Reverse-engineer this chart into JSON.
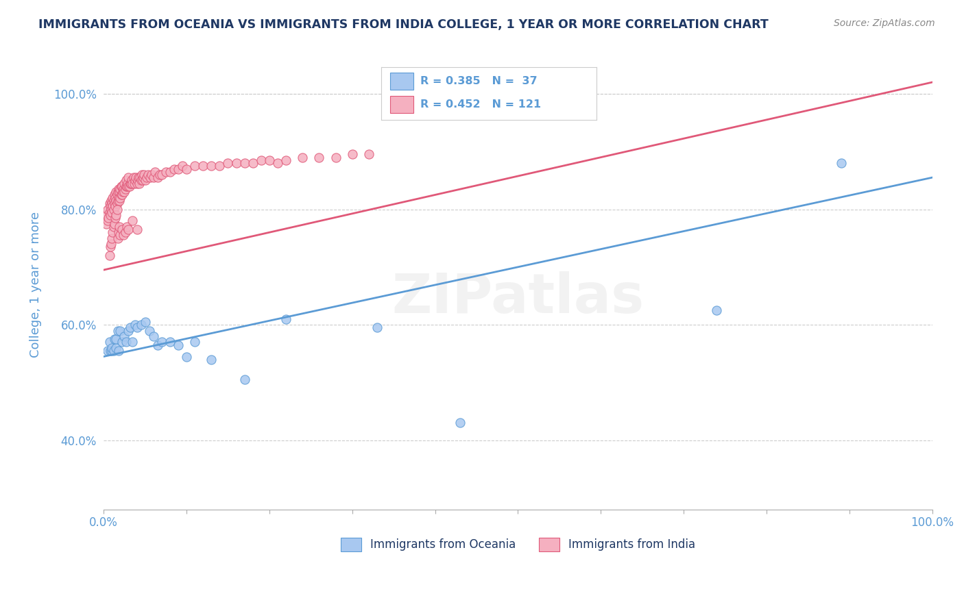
{
  "title": "IMMIGRANTS FROM OCEANIA VS IMMIGRANTS FROM INDIA COLLEGE, 1 YEAR OR MORE CORRELATION CHART",
  "source_text": "Source: ZipAtlas.com",
  "ylabel": "College, 1 year or more",
  "xlim": [
    0.0,
    1.0
  ],
  "ylim": [
    0.28,
    1.06
  ],
  "y_ticks": [
    0.4,
    0.6,
    0.8,
    1.0
  ],
  "y_tick_labels": [
    "40.0%",
    "60.0%",
    "80.0%",
    "100.0%"
  ],
  "x_ticks": [
    0.0,
    0.1,
    0.2,
    0.3,
    0.4,
    0.5,
    0.6,
    0.7,
    0.8,
    0.9,
    1.0
  ],
  "watermark": "ZIPatlas",
  "legend_r_oceania": "0.385",
  "legend_n_oceania": "37",
  "legend_r_india": "0.452",
  "legend_n_india": "121",
  "color_oceania_fill": "#A8C8F0",
  "color_oceania_edge": "#5B9BD5",
  "color_india_fill": "#F5B0C0",
  "color_india_edge": "#E05878",
  "color_line_oceania": "#5B9BD5",
  "color_line_india": "#E05878",
  "title_color": "#1F3864",
  "axis_label_color": "#5B9BD5",
  "legend_rn_color": "#5B9BD5",
  "grid_color": "#CCCCCC",
  "background_color": "#FFFFFF",
  "oceania_trend_start_y": 0.545,
  "oceania_trend_end_y": 0.855,
  "india_trend_start_y": 0.695,
  "india_trend_end_y": 1.02,
  "oceania_x": [
    0.005,
    0.007,
    0.008,
    0.01,
    0.01,
    0.012,
    0.013,
    0.015,
    0.015,
    0.017,
    0.018,
    0.02,
    0.022,
    0.025,
    0.027,
    0.03,
    0.032,
    0.035,
    0.038,
    0.04,
    0.045,
    0.05,
    0.055,
    0.06,
    0.065,
    0.07,
    0.08,
    0.09,
    0.1,
    0.11,
    0.13,
    0.17,
    0.22,
    0.33,
    0.43,
    0.74,
    0.89
  ],
  "oceania_y": [
    0.555,
    0.57,
    0.555,
    0.555,
    0.56,
    0.555,
    0.575,
    0.56,
    0.575,
    0.59,
    0.555,
    0.59,
    0.57,
    0.58,
    0.57,
    0.59,
    0.595,
    0.57,
    0.6,
    0.595,
    0.6,
    0.605,
    0.59,
    0.58,
    0.565,
    0.57,
    0.57,
    0.565,
    0.545,
    0.57,
    0.54,
    0.505,
    0.61,
    0.595,
    0.43,
    0.625,
    0.88
  ],
  "india_x": [
    0.003,
    0.004,
    0.005,
    0.005,
    0.006,
    0.007,
    0.007,
    0.008,
    0.008,
    0.009,
    0.009,
    0.01,
    0.01,
    0.011,
    0.011,
    0.012,
    0.012,
    0.013,
    0.013,
    0.014,
    0.014,
    0.015,
    0.015,
    0.016,
    0.016,
    0.017,
    0.017,
    0.018,
    0.018,
    0.019,
    0.019,
    0.02,
    0.02,
    0.021,
    0.021,
    0.022,
    0.022,
    0.023,
    0.024,
    0.025,
    0.025,
    0.026,
    0.027,
    0.027,
    0.028,
    0.029,
    0.03,
    0.03,
    0.031,
    0.032,
    0.033,
    0.034,
    0.035,
    0.036,
    0.037,
    0.038,
    0.039,
    0.04,
    0.041,
    0.042,
    0.043,
    0.044,
    0.045,
    0.046,
    0.047,
    0.048,
    0.049,
    0.05,
    0.052,
    0.054,
    0.056,
    0.058,
    0.06,
    0.062,
    0.065,
    0.068,
    0.07,
    0.075,
    0.08,
    0.085,
    0.09,
    0.095,
    0.1,
    0.11,
    0.12,
    0.13,
    0.14,
    0.15,
    0.16,
    0.17,
    0.18,
    0.19,
    0.2,
    0.21,
    0.22,
    0.24,
    0.26,
    0.28,
    0.3,
    0.32,
    0.007,
    0.008,
    0.009,
    0.01,
    0.011,
    0.012,
    0.013,
    0.014,
    0.015,
    0.016,
    0.017,
    0.018,
    0.019,
    0.02,
    0.022,
    0.024,
    0.026,
    0.028,
    0.03,
    0.035,
    0.04
  ],
  "india_y": [
    0.775,
    0.79,
    0.78,
    0.8,
    0.785,
    0.795,
    0.81,
    0.79,
    0.805,
    0.8,
    0.815,
    0.795,
    0.81,
    0.805,
    0.82,
    0.8,
    0.815,
    0.81,
    0.825,
    0.805,
    0.82,
    0.815,
    0.83,
    0.81,
    0.825,
    0.815,
    0.83,
    0.82,
    0.835,
    0.815,
    0.83,
    0.82,
    0.835,
    0.825,
    0.84,
    0.825,
    0.84,
    0.83,
    0.835,
    0.83,
    0.845,
    0.835,
    0.84,
    0.85,
    0.84,
    0.845,
    0.84,
    0.855,
    0.84,
    0.845,
    0.845,
    0.85,
    0.845,
    0.855,
    0.845,
    0.85,
    0.855,
    0.845,
    0.85,
    0.855,
    0.845,
    0.855,
    0.85,
    0.86,
    0.85,
    0.855,
    0.86,
    0.85,
    0.855,
    0.86,
    0.855,
    0.86,
    0.855,
    0.865,
    0.855,
    0.86,
    0.86,
    0.865,
    0.865,
    0.87,
    0.87,
    0.875,
    0.87,
    0.875,
    0.875,
    0.875,
    0.875,
    0.88,
    0.88,
    0.88,
    0.88,
    0.885,
    0.885,
    0.88,
    0.885,
    0.89,
    0.89,
    0.89,
    0.895,
    0.895,
    0.72,
    0.735,
    0.74,
    0.75,
    0.76,
    0.77,
    0.775,
    0.785,
    0.79,
    0.8,
    0.75,
    0.76,
    0.77,
    0.755,
    0.765,
    0.755,
    0.76,
    0.77,
    0.765,
    0.78,
    0.765
  ]
}
